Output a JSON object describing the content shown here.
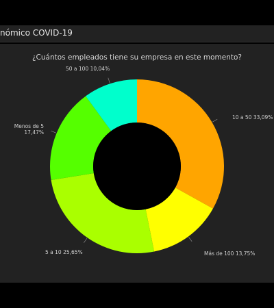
{
  "header": {
    "title": "nómico COVID-19"
  },
  "chart_data": {
    "type": "pie",
    "donut": true,
    "title": "¿Cuántos empleados tiene su empresa en este momento?",
    "slices": [
      {
        "label": "10 a 50",
        "value": 33.09,
        "display": "33,09%",
        "color": "#FFA500"
      },
      {
        "label": "Más de 100",
        "value": 13.75,
        "display": "13,75%",
        "color": "#FFFF00"
      },
      {
        "label": "5 a 10",
        "value": 25.65,
        "display": "25,65%",
        "color": "#AAFF00"
      },
      {
        "label": "Menos de 5",
        "value": 17.47,
        "display": "17,47%",
        "color": "#55FF00"
      },
      {
        "label": "50 a 100",
        "value": 10.04,
        "display": "10,04%",
        "color": "#00FFCC"
      }
    ],
    "colors": {
      "background": "#222222",
      "hole": "#000000"
    }
  }
}
